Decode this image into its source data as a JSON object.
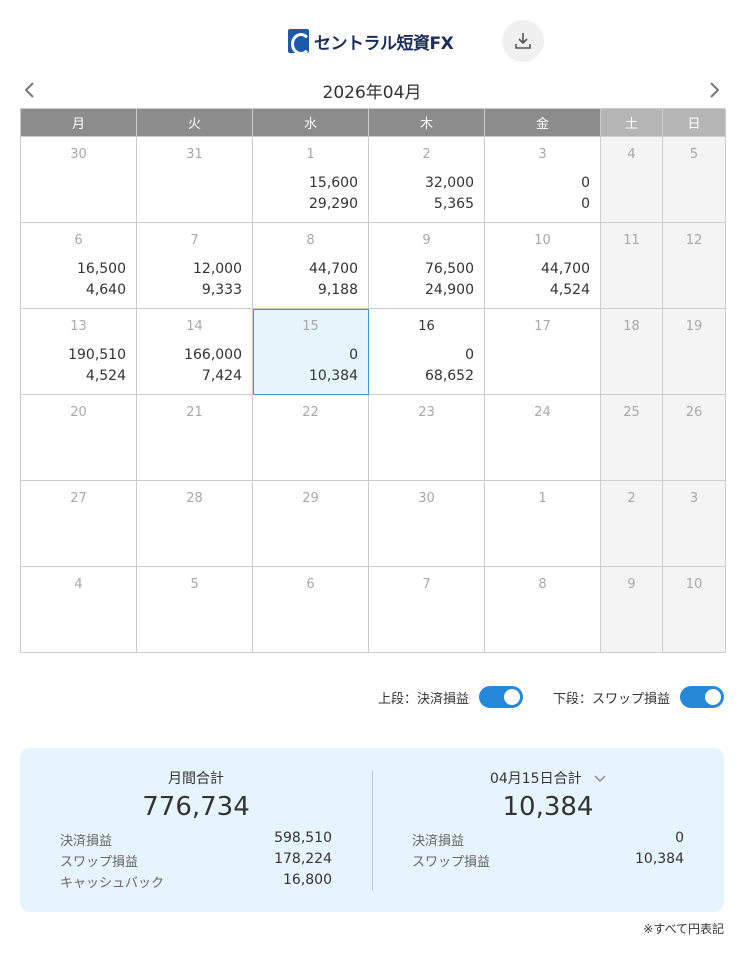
{
  "header": {
    "logo_text": "セントラル短資FX",
    "download_icon": "download-icon"
  },
  "calendar": {
    "title": "2026年04月",
    "weekdays": [
      "月",
      "火",
      "水",
      "木",
      "金",
      "土",
      "日"
    ],
    "weeks": [
      [
        {
          "day": "30",
          "top": "",
          "bottom": ""
        },
        {
          "day": "31",
          "top": "",
          "bottom": ""
        },
        {
          "day": "1",
          "top": "15,600",
          "bottom": "29,290"
        },
        {
          "day": "2",
          "top": "32,000",
          "bottom": "5,365"
        },
        {
          "day": "3",
          "top": "0",
          "bottom": "0"
        },
        {
          "day": "4",
          "top": "",
          "bottom": ""
        },
        {
          "day": "5",
          "top": "",
          "bottom": ""
        }
      ],
      [
        {
          "day": "6",
          "top": "16,500",
          "bottom": "4,640"
        },
        {
          "day": "7",
          "top": "12,000",
          "bottom": "9,333"
        },
        {
          "day": "8",
          "top": "44,700",
          "bottom": "9,188"
        },
        {
          "day": "9",
          "top": "76,500",
          "bottom": "24,900"
        },
        {
          "day": "10",
          "top": "44,700",
          "bottom": "4,524"
        },
        {
          "day": "11",
          "top": "",
          "bottom": ""
        },
        {
          "day": "12",
          "top": "",
          "bottom": ""
        }
      ],
      [
        {
          "day": "13",
          "top": "190,510",
          "bottom": "4,524"
        },
        {
          "day": "14",
          "top": "166,000",
          "bottom": "7,424"
        },
        {
          "day": "15",
          "top": "0",
          "bottom": "10,384"
        },
        {
          "day": "16",
          "top": "0",
          "bottom": "68,652"
        },
        {
          "day": "17",
          "top": "",
          "bottom": ""
        },
        {
          "day": "18",
          "top": "",
          "bottom": ""
        },
        {
          "day": "19",
          "top": "",
          "bottom": ""
        }
      ],
      [
        {
          "day": "20",
          "top": "",
          "bottom": ""
        },
        {
          "day": "21",
          "top": "",
          "bottom": ""
        },
        {
          "day": "22",
          "top": "",
          "bottom": ""
        },
        {
          "day": "23",
          "top": "",
          "bottom": ""
        },
        {
          "day": "24",
          "top": "",
          "bottom": ""
        },
        {
          "day": "25",
          "top": "",
          "bottom": ""
        },
        {
          "day": "26",
          "top": "",
          "bottom": ""
        }
      ],
      [
        {
          "day": "27",
          "top": "",
          "bottom": ""
        },
        {
          "day": "28",
          "top": "",
          "bottom": ""
        },
        {
          "day": "29",
          "top": "",
          "bottom": ""
        },
        {
          "day": "30",
          "top": "",
          "bottom": ""
        },
        {
          "day": "1",
          "top": "",
          "bottom": ""
        },
        {
          "day": "2",
          "top": "",
          "bottom": ""
        },
        {
          "day": "3",
          "top": "",
          "bottom": ""
        }
      ],
      [
        {
          "day": "4",
          "top": "",
          "bottom": ""
        },
        {
          "day": "5",
          "top": "",
          "bottom": ""
        },
        {
          "day": "6",
          "top": "",
          "bottom": ""
        },
        {
          "day": "7",
          "top": "",
          "bottom": ""
        },
        {
          "day": "8",
          "top": "",
          "bottom": ""
        },
        {
          "day": "9",
          "top": "",
          "bottom": ""
        },
        {
          "day": "10",
          "top": "",
          "bottom": ""
        }
      ]
    ]
  },
  "toggles": {
    "upper_label": "上段：決済損益",
    "lower_label": "下段：スワップ損益",
    "upper_on": true,
    "lower_on": true,
    "color": "#2688d9"
  },
  "summary": {
    "monthly": {
      "title": "月間合計",
      "total": "776,734",
      "rows": [
        {
          "label": "決済損益",
          "value": "598,510"
        },
        {
          "label": "スワップ損益",
          "value": "178,224"
        },
        {
          "label": "キャッシュバック",
          "value": "16,800"
        }
      ]
    },
    "daily": {
      "title": "04月15日合計",
      "total": "10,384",
      "rows": [
        {
          "label": "決済損益",
          "value": "0"
        },
        {
          "label": "スワップ損益",
          "value": "10,384"
        }
      ]
    }
  },
  "footnote": "※すべて円表記"
}
